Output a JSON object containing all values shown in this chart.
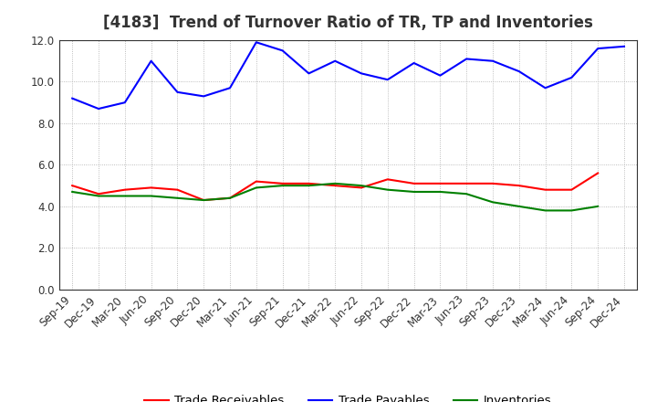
{
  "title": "[4183]  Trend of Turnover Ratio of TR, TP and Inventories",
  "x_labels": [
    "Sep-19",
    "Dec-19",
    "Mar-20",
    "Jun-20",
    "Sep-20",
    "Dec-20",
    "Mar-21",
    "Jun-21",
    "Sep-21",
    "Dec-21",
    "Mar-22",
    "Jun-22",
    "Sep-22",
    "Dec-22",
    "Mar-23",
    "Jun-23",
    "Sep-23",
    "Dec-23",
    "Mar-24",
    "Jun-24",
    "Sep-24",
    "Dec-24"
  ],
  "trade_receivables": [
    5.0,
    4.6,
    4.8,
    4.9,
    4.8,
    4.3,
    4.4,
    5.2,
    5.1,
    5.1,
    5.0,
    4.9,
    5.3,
    5.1,
    5.1,
    5.1,
    5.1,
    5.0,
    4.8,
    4.8,
    5.6,
    null
  ],
  "trade_payables": [
    9.2,
    8.7,
    9.0,
    11.0,
    9.5,
    9.3,
    9.7,
    11.9,
    11.5,
    10.4,
    11.0,
    10.4,
    10.1,
    10.9,
    10.3,
    11.1,
    11.0,
    10.5,
    9.7,
    10.2,
    11.6,
    11.7
  ],
  "inventories": [
    4.7,
    4.5,
    4.5,
    4.5,
    4.4,
    4.3,
    4.4,
    4.9,
    5.0,
    5.0,
    5.1,
    5.0,
    4.8,
    4.7,
    4.7,
    4.6,
    4.2,
    4.0,
    3.8,
    3.8,
    4.0,
    null
  ],
  "ylim": [
    0.0,
    12.0
  ],
  "yticks": [
    0.0,
    2.0,
    4.0,
    6.0,
    8.0,
    10.0,
    12.0
  ],
  "color_tr": "#ff0000",
  "color_tp": "#0000ff",
  "color_inv": "#008000",
  "legend_labels": [
    "Trade Receivables",
    "Trade Payables",
    "Inventories"
  ],
  "background_color": "#ffffff",
  "plot_bg_color": "#ffffff",
  "grid_color": "#aaaaaa",
  "title_fontsize": 12,
  "axis_fontsize": 8.5,
  "legend_fontsize": 9.5,
  "title_color": "#333333"
}
